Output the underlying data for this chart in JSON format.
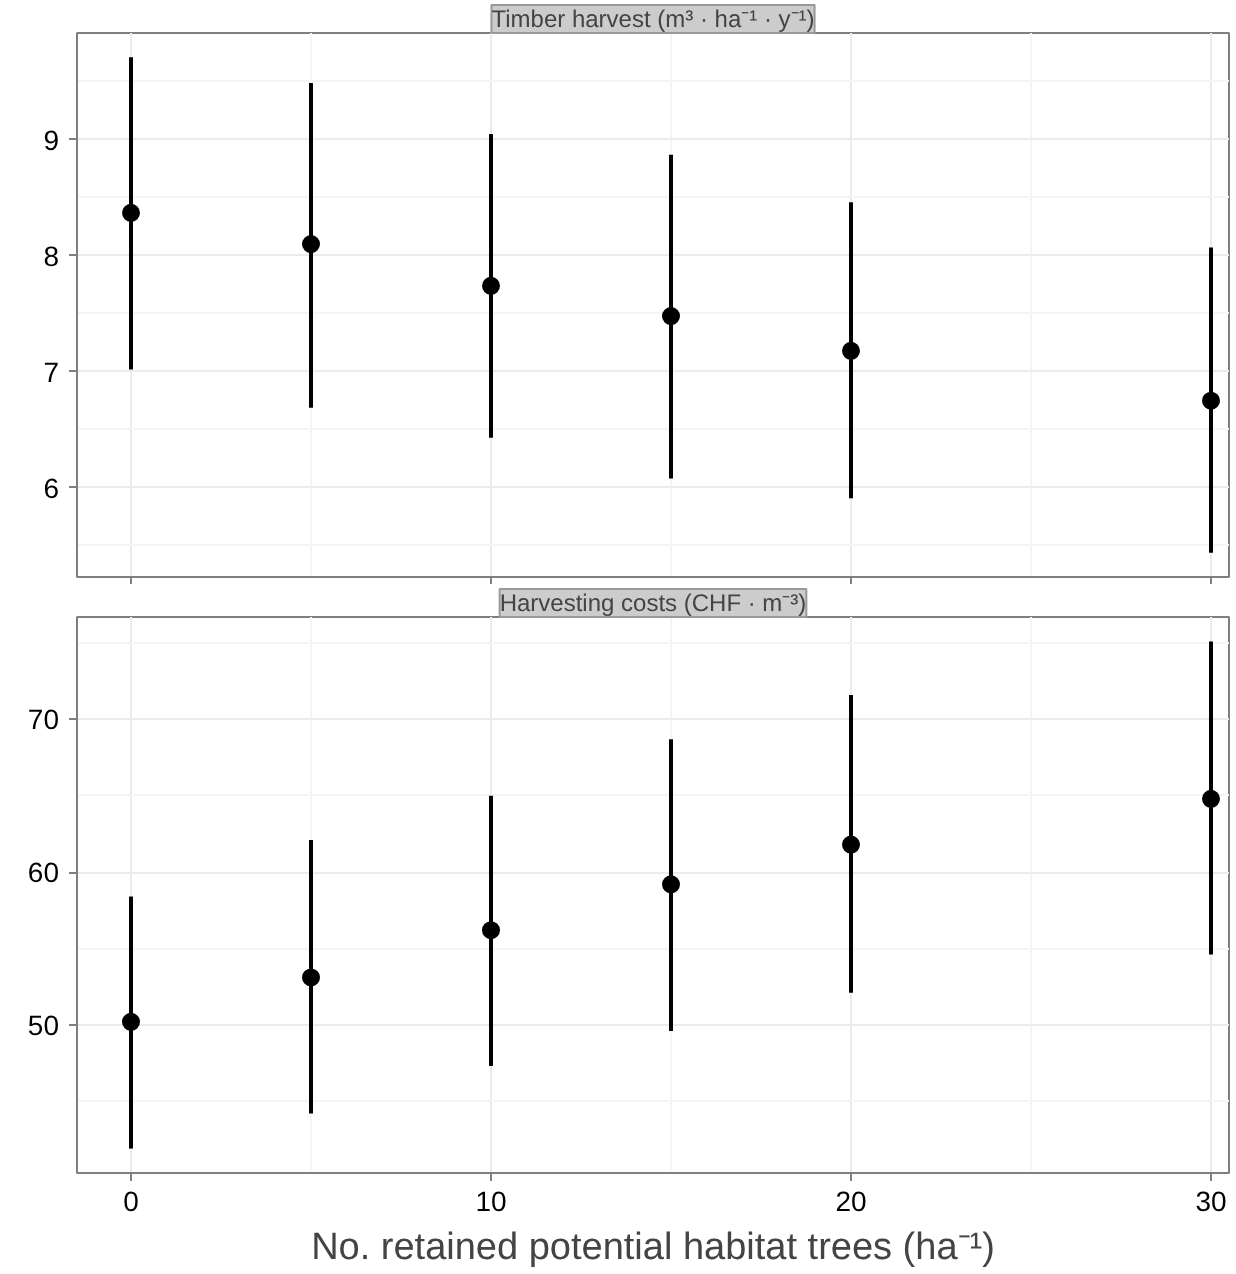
{
  "chart_data": [
    {
      "type": "scatter",
      "title": "Timber harvest (m³ · ha⁻¹ · y⁻¹)",
      "x": [
        0,
        5,
        10,
        15,
        20,
        30
      ],
      "values": [
        8.37,
        8.1,
        7.74,
        7.48,
        7.18,
        6.75
      ],
      "errors": [
        [
          7.02,
          9.71
        ],
        [
          6.69,
          9.49
        ],
        [
          6.43,
          9.05
        ],
        [
          6.08,
          8.87
        ],
        [
          5.91,
          8.46
        ],
        [
          5.44,
          8.07
        ]
      ],
      "color": "#000000",
      "marker": "circle",
      "grid": true,
      "tick_labels": "y",
      "xlim": [
        -1.5,
        30.5
      ],
      "xticks": [
        0,
        10,
        20,
        30
      ],
      "ylim": [
        5.23,
        9.92
      ],
      "yticks": [
        6,
        7,
        8,
        9
      ]
    },
    {
      "type": "scatter",
      "title": "Harvesting costs (CHF · m⁻³)",
      "xlabel": "No. retained potential habitat trees (ha⁻¹)",
      "x": [
        0,
        5,
        10,
        15,
        20,
        30
      ],
      "values": [
        50.2,
        53.1,
        56.2,
        59.2,
        61.8,
        64.8
      ],
      "errors": [
        [
          41.9,
          58.4
        ],
        [
          44.2,
          62.1
        ],
        [
          47.3,
          65.0
        ],
        [
          49.6,
          68.7
        ],
        [
          52.1,
          71.6
        ],
        [
          54.6,
          75.1
        ]
      ],
      "color": "#000000",
      "marker": "circle",
      "grid": true,
      "xlim": [
        -1.5,
        30.5
      ],
      "xticks": [
        0,
        10,
        20,
        30
      ],
      "ylim": [
        40.3,
        76.7
      ],
      "yticks": [
        50,
        60,
        70
      ]
    }
  ]
}
